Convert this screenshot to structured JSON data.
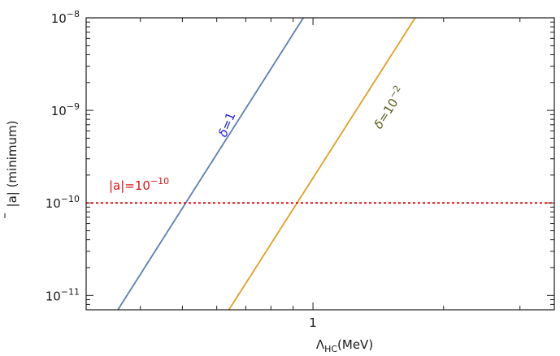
{
  "chart_data": {
    "type": "line",
    "xscale": "log",
    "yscale": "log",
    "xlim": [
      0.3,
      3.6
    ],
    "ylim": [
      7e-12,
      1e-08
    ],
    "xlabel": {
      "main": "Λ",
      "sub": "HC",
      "unit": "(MeV)"
    },
    "ylabel": {
      "text": "|a| (minimum)",
      "overbar_on": "a"
    },
    "x_tick_labels": [
      {
        "value": 1,
        "label": "1"
      }
    ],
    "y_tick_labels": [
      {
        "value": 1e-08,
        "base": "10",
        "exp": "−8"
      },
      {
        "value": 1e-09,
        "base": "10",
        "exp": "−9"
      },
      {
        "value": 1e-10,
        "base": "10",
        "exp": "−10"
      },
      {
        "value": 1e-11,
        "base": "10",
        "exp": "−11"
      }
    ],
    "series": [
      {
        "label": {
          "delta": "δ",
          "rest": "=1",
          "exp": ""
        },
        "color": "#5b7fb2",
        "label_color": "#2020e0",
        "style": "solid",
        "x": [
          0.355,
          0.95
        ],
        "y": [
          7e-12,
          1e-08
        ]
      },
      {
        "label": {
          "delta": "δ",
          "rest": "=10",
          "exp": "−2"
        },
        "color": "#e0a020",
        "label_color": "#5a5a1a",
        "style": "solid",
        "x": [
          0.64,
          1.72
        ],
        "y": [
          7e-12,
          1e-08
        ]
      },
      {
        "label": {
          "delta": "",
          "rest": "|a|=10",
          "exp": "−10"
        },
        "color": "#e01010",
        "label_color": "#e01010",
        "style": "dotted",
        "x": [
          0.3,
          3.6
        ],
        "y": [
          1e-10,
          1e-10
        ]
      }
    ],
    "frame_color": "#1a1a1a",
    "grid": false
  }
}
